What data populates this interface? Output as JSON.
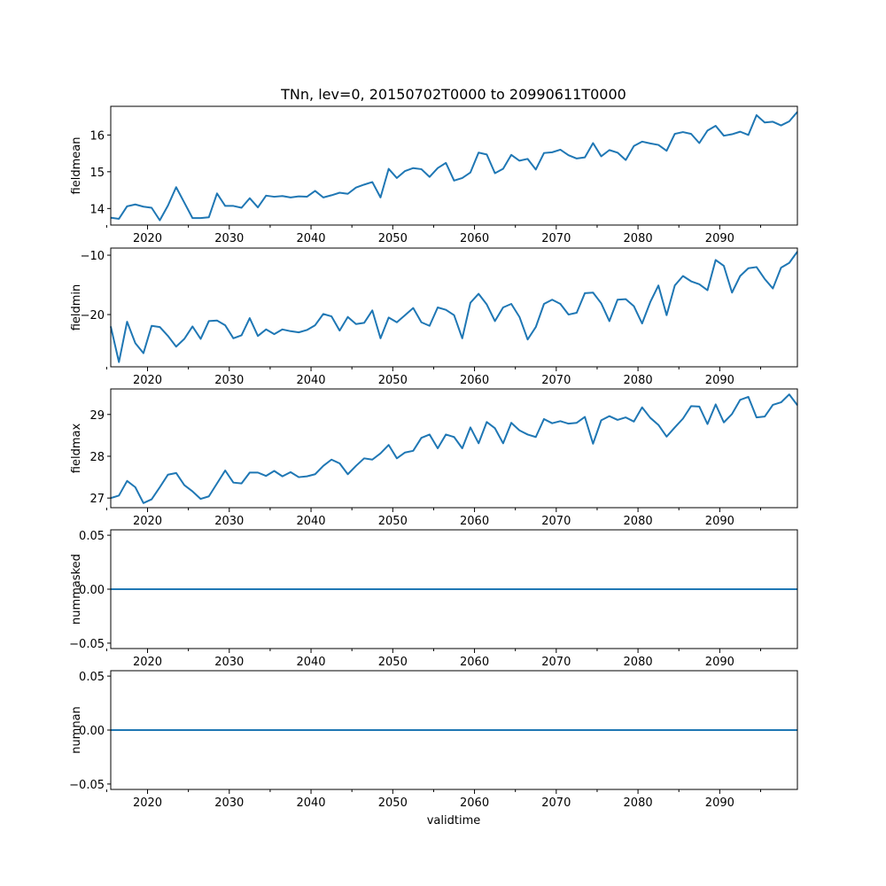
{
  "chart_data": {
    "title": "TNn, lev=0, 20150702T0000 to 20990611T0000",
    "xlabel": "validtime",
    "line_color": "#1f77b4",
    "xlim": [
      2015.5,
      2099.5
    ],
    "x_ticks": [
      2020,
      2030,
      2040,
      2050,
      2060,
      2070,
      2080,
      2090
    ],
    "x_tick_labels": [
      "2020",
      "2030",
      "2040",
      "2050",
      "2060",
      "2070",
      "2080",
      "2090"
    ],
    "x": [
      2015.5,
      2016.5,
      2017.5,
      2018.5,
      2019.5,
      2020.5,
      2021.5,
      2022.5,
      2023.5,
      2024.5,
      2025.5,
      2026.5,
      2027.5,
      2028.5,
      2029.5,
      2030.5,
      2031.5,
      2032.5,
      2033.5,
      2034.5,
      2035.5,
      2036.5,
      2037.5,
      2038.5,
      2039.5,
      2040.5,
      2041.5,
      2042.5,
      2043.5,
      2044.5,
      2045.5,
      2046.5,
      2047.5,
      2048.5,
      2049.5,
      2050.5,
      2051.5,
      2052.5,
      2053.5,
      2054.5,
      2055.5,
      2056.5,
      2057.5,
      2058.5,
      2059.5,
      2060.5,
      2061.5,
      2062.5,
      2063.5,
      2064.5,
      2065.5,
      2066.5,
      2067.5,
      2068.5,
      2069.5,
      2070.5,
      2071.5,
      2072.5,
      2073.5,
      2074.5,
      2075.5,
      2076.5,
      2077.5,
      2078.5,
      2079.5,
      2080.5,
      2081.5,
      2082.5,
      2083.5,
      2084.5,
      2085.5,
      2086.5,
      2087.5,
      2088.5,
      2089.5,
      2090.5,
      2091.5,
      2092.5,
      2093.5,
      2094.5,
      2095.5,
      2096.5,
      2097.5,
      2098.5,
      2099.5
    ],
    "panels": [
      {
        "type": "line",
        "name": "fieldmean",
        "ylabel": "fieldmean",
        "ylim": [
          13.55,
          16.78
        ],
        "y_ticks": [
          14,
          15,
          16
        ],
        "y_tick_labels": [
          "14",
          "15",
          "16"
        ],
        "values": [
          13.75,
          13.72,
          14.06,
          14.11,
          14.05,
          14.02,
          13.68,
          14.08,
          14.58,
          14.16,
          13.74,
          13.74,
          13.76,
          14.41,
          14.07,
          14.07,
          14.02,
          14.28,
          14.03,
          14.35,
          14.32,
          14.34,
          14.3,
          14.33,
          14.32,
          14.48,
          14.3,
          14.36,
          14.43,
          14.4,
          14.57,
          14.65,
          14.72,
          14.3,
          15.08,
          14.83,
          15.02,
          15.1,
          15.07,
          14.86,
          15.1,
          15.24,
          14.76,
          14.83,
          14.98,
          15.52,
          15.47,
          14.96,
          15.08,
          15.46,
          15.3,
          15.35,
          15.06,
          15.51,
          15.53,
          15.6,
          15.45,
          15.36,
          15.39,
          15.78,
          15.42,
          15.59,
          15.52,
          15.32,
          15.7,
          15.82,
          15.77,
          15.73,
          15.57,
          16.03,
          16.08,
          16.03,
          15.78,
          16.12,
          16.25,
          15.98,
          16.02,
          16.09,
          16.0,
          16.54,
          16.34,
          16.36,
          16.26,
          16.37,
          16.63
        ]
      },
      {
        "type": "line",
        "name": "fieldmin",
        "ylabel": "fieldmin",
        "ylim": [
          -28.8,
          -8.8
        ],
        "y_ticks": [
          -20,
          -10
        ],
        "y_tick_labels": [
          "−20",
          "−10"
        ],
        "values": [
          -22,
          -28,
          -21.2,
          -24.8,
          -26.5,
          -21.9,
          -22.1,
          -23.6,
          -25.4,
          -24.1,
          -22,
          -24.1,
          -21.1,
          -21,
          -21.8,
          -24,
          -23.5,
          -20.6,
          -23.6,
          -22.5,
          -23.3,
          -22.5,
          -22.8,
          -23,
          -22.6,
          -21.8,
          -19.9,
          -20.3,
          -22.7,
          -20.4,
          -21.6,
          -21.4,
          -19.3,
          -24,
          -20.5,
          -21.3,
          -20.1,
          -18.9,
          -21.3,
          -21.9,
          -18.8,
          -19.2,
          -20.1,
          -24,
          -18,
          -16.5,
          -18.3,
          -21.1,
          -18.8,
          -18.2,
          -20.4,
          -24.2,
          -22.1,
          -18.2,
          -17.5,
          -18.2,
          -20,
          -19.7,
          -16.4,
          -16.3,
          -18.1,
          -21.1,
          -17.5,
          -17.4,
          -18.6,
          -21.5,
          -17.9,
          -15.1,
          -20.1,
          -15.1,
          -13.5,
          -14.4,
          -14.9,
          -15.9,
          -10.8,
          -11.8,
          -16.3,
          -13.5,
          -12.2,
          -12,
          -14,
          -15.6,
          -12.1,
          -11.3,
          -9.4
        ]
      },
      {
        "type": "line",
        "name": "fieldmax",
        "ylabel": "fieldmax",
        "ylim": [
          26.77,
          29.61
        ],
        "y_ticks": [
          27,
          28,
          29
        ],
        "y_tick_labels": [
          "27",
          "28",
          "29"
        ],
        "values": [
          27.0,
          27.06,
          27.41,
          27.26,
          26.88,
          26.97,
          27.26,
          27.56,
          27.6,
          27.31,
          27.16,
          26.98,
          27.04,
          27.35,
          27.66,
          27.37,
          27.35,
          27.61,
          27.61,
          27.53,
          27.65,
          27.52,
          27.62,
          27.5,
          27.52,
          27.57,
          27.77,
          27.92,
          27.83,
          27.57,
          27.77,
          27.95,
          27.92,
          28.07,
          28.27,
          27.95,
          28.09,
          28.13,
          28.44,
          28.52,
          28.19,
          28.52,
          28.46,
          28.19,
          28.69,
          28.31,
          28.82,
          28.67,
          28.31,
          28.8,
          28.62,
          28.52,
          28.46,
          28.89,
          28.79,
          28.84,
          28.78,
          28.8,
          28.94,
          28.3,
          28.86,
          28.96,
          28.87,
          28.93,
          28.83,
          29.17,
          28.92,
          28.75,
          28.47,
          28.69,
          28.9,
          29.2,
          29.19,
          28.77,
          29.24,
          28.81,
          29.01,
          29.35,
          29.42,
          28.93,
          28.95,
          29.23,
          29.29,
          29.48,
          29.22
        ]
      },
      {
        "type": "line",
        "name": "nummasked",
        "ylabel": "nummasked",
        "ylim": [
          -0.055,
          0.055
        ],
        "y_ticks": [
          -0.05,
          0.0,
          0.05
        ],
        "y_tick_labels": [
          "−0.05",
          "0.00",
          "0.05"
        ],
        "values": "zero"
      },
      {
        "type": "line",
        "name": "numnan",
        "ylabel": "numnan",
        "ylim": [
          -0.055,
          0.055
        ],
        "y_ticks": [
          -0.05,
          0.0,
          0.05
        ],
        "y_tick_labels": [
          "−0.05",
          "0.00",
          "0.05"
        ],
        "values": "zero"
      }
    ]
  }
}
